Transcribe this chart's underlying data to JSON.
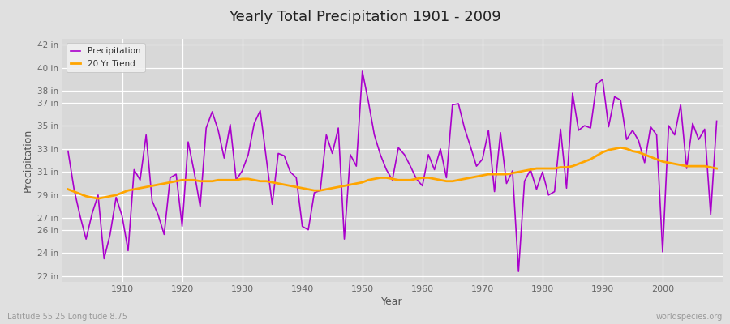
{
  "title": "Yearly Total Precipitation 1901 - 2009",
  "xlabel": "Year",
  "ylabel": "Precipitation",
  "subtitle_left": "Latitude 55.25 Longitude 8.75",
  "subtitle_right": "worldspecies.org",
  "years": [
    1901,
    1902,
    1903,
    1904,
    1905,
    1906,
    1907,
    1908,
    1909,
    1910,
    1911,
    1912,
    1913,
    1914,
    1915,
    1916,
    1917,
    1918,
    1919,
    1920,
    1921,
    1922,
    1923,
    1924,
    1925,
    1926,
    1927,
    1928,
    1929,
    1930,
    1931,
    1932,
    1933,
    1934,
    1935,
    1936,
    1937,
    1938,
    1939,
    1940,
    1941,
    1942,
    1943,
    1944,
    1945,
    1946,
    1947,
    1948,
    1949,
    1950,
    1951,
    1952,
    1953,
    1954,
    1955,
    1956,
    1957,
    1958,
    1959,
    1960,
    1961,
    1962,
    1963,
    1964,
    1965,
    1966,
    1967,
    1968,
    1969,
    1970,
    1971,
    1972,
    1973,
    1974,
    1975,
    1976,
    1977,
    1978,
    1979,
    1980,
    1981,
    1982,
    1983,
    1984,
    1985,
    1986,
    1987,
    1988,
    1989,
    1990,
    1991,
    1992,
    1993,
    1994,
    1995,
    1996,
    1997,
    1998,
    1999,
    2000,
    2001,
    2002,
    2003,
    2004,
    2005,
    2006,
    2007,
    2008,
    2009
  ],
  "precip": [
    32.8,
    29.5,
    27.2,
    25.2,
    27.4,
    29.0,
    23.5,
    25.6,
    28.8,
    27.2,
    24.2,
    31.2,
    30.3,
    34.2,
    28.5,
    27.3,
    25.6,
    30.5,
    30.8,
    26.3,
    33.6,
    31.0,
    28.0,
    34.8,
    36.2,
    34.6,
    32.2,
    35.1,
    30.3,
    31.1,
    32.5,
    35.2,
    36.3,
    32.2,
    28.2,
    32.6,
    32.4,
    31.0,
    30.5,
    26.3,
    26.0,
    29.2,
    29.4,
    34.2,
    32.6,
    34.8,
    25.2,
    32.5,
    31.5,
    39.7,
    37.1,
    34.2,
    32.5,
    31.2,
    30.3,
    33.1,
    32.5,
    31.5,
    30.4,
    29.8,
    32.5,
    31.2,
    33.0,
    30.5,
    36.8,
    36.9,
    34.8,
    33.2,
    31.5,
    32.1,
    34.6,
    29.3,
    34.4,
    30.0,
    31.1,
    22.4,
    30.2,
    31.2,
    29.5,
    31.0,
    29.0,
    29.3,
    34.7,
    29.6,
    37.8,
    34.6,
    35.0,
    34.8,
    38.6,
    39.0,
    34.9,
    37.5,
    37.2,
    33.8,
    34.6,
    33.7,
    31.8,
    34.9,
    34.2,
    24.1,
    35.0,
    34.2,
    36.8,
    31.3,
    35.2,
    33.8,
    34.7,
    27.3,
    35.4
  ],
  "trend": [
    29.5,
    29.3,
    29.1,
    28.9,
    28.8,
    28.7,
    28.8,
    28.9,
    29.0,
    29.2,
    29.4,
    29.5,
    29.6,
    29.7,
    29.8,
    29.9,
    30.0,
    30.1,
    30.2,
    30.3,
    30.3,
    30.3,
    30.2,
    30.2,
    30.2,
    30.3,
    30.3,
    30.3,
    30.3,
    30.4,
    30.4,
    30.3,
    30.2,
    30.2,
    30.1,
    30.0,
    29.9,
    29.8,
    29.7,
    29.6,
    29.5,
    29.4,
    29.4,
    29.5,
    29.6,
    29.7,
    29.8,
    29.9,
    30.0,
    30.1,
    30.3,
    30.4,
    30.5,
    30.5,
    30.4,
    30.3,
    30.3,
    30.3,
    30.4,
    30.5,
    30.5,
    30.4,
    30.3,
    30.2,
    30.2,
    30.3,
    30.4,
    30.5,
    30.6,
    30.7,
    30.8,
    30.8,
    30.8,
    30.8,
    30.9,
    31.0,
    31.1,
    31.2,
    31.3,
    31.3,
    31.3,
    31.3,
    31.4,
    31.4,
    31.5,
    31.7,
    31.9,
    32.1,
    32.4,
    32.7,
    32.9,
    33.0,
    33.1,
    33.0,
    32.8,
    32.7,
    32.5,
    32.3,
    32.1,
    31.9,
    31.8,
    31.7,
    31.6,
    31.5,
    31.5,
    31.5,
    31.5,
    31.4,
    31.3
  ],
  "precip_color": "#AA00CC",
  "trend_color": "#FFA500",
  "bg_color": "#E0E0E0",
  "plot_bg_color": "#D8D8D8",
  "grid_color": "#FFFFFF",
  "yticks": [
    22,
    24,
    26,
    27,
    29,
    31,
    33,
    35,
    37,
    38,
    40,
    42
  ],
  "ylim": [
    21.5,
    42.5
  ],
  "xlim": [
    1900,
    2010
  ],
  "xticks": [
    1910,
    1920,
    1930,
    1940,
    1950,
    1960,
    1970,
    1980,
    1990,
    2000
  ]
}
